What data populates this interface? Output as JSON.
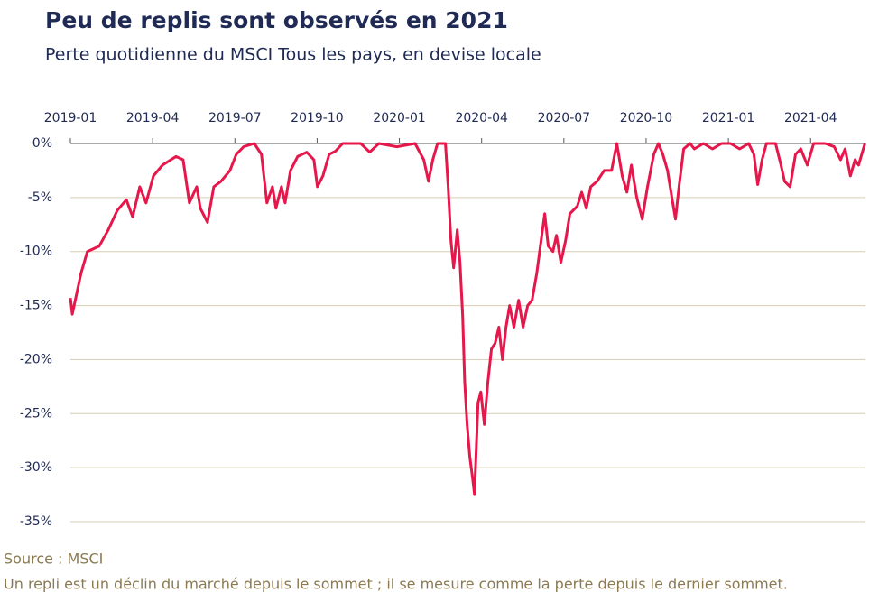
{
  "chart_data": {
    "type": "line",
    "title": "Peu de replis sont observés en 2021",
    "subtitle": "Perte quotidienne du MSCI Tous les pays, en devise locale",
    "source": "Source : MSCI",
    "note": "Un repli est un déclin du marché depuis le sommet ; il se mesure comme la perte depuis le dernier sommet.",
    "color": "#e5174b",
    "grid": true,
    "xlim": [
      0,
      29
    ],
    "xticks": [
      {
        "value": 0,
        "label": "2019-01"
      },
      {
        "value": 3,
        "label": "2019-04"
      },
      {
        "value": 6,
        "label": "2019-07"
      },
      {
        "value": 9,
        "label": "2019-10"
      },
      {
        "value": 12,
        "label": "2020-01"
      },
      {
        "value": 15,
        "label": "2020-04"
      },
      {
        "value": 18,
        "label": "2020-07"
      },
      {
        "value": 21,
        "label": "2020-10"
      },
      {
        "value": 24,
        "label": "2021-01"
      },
      {
        "value": 27,
        "label": "2021-04"
      }
    ],
    "ylim": [
      -35,
      0
    ],
    "yticks": [
      {
        "value": 0,
        "label": "0%"
      },
      {
        "value": -5,
        "label": "-5%"
      },
      {
        "value": -10,
        "label": "-10%"
      },
      {
        "value": -15,
        "label": "-15%"
      },
      {
        "value": -20,
        "label": "-20%"
      },
      {
        "value": -25,
        "label": "-25%"
      },
      {
        "value": -30,
        "label": "-30%"
      },
      {
        "value": -35,
        "label": "-35%"
      }
    ],
    "x": [
      0,
      0.07,
      0.39,
      0.62,
      1.05,
      1.38,
      1.71,
      2.04,
      2.27,
      2.53,
      2.76,
      3.03,
      3.36,
      3.85,
      4.11,
      4.34,
      4.61,
      4.74,
      5.0,
      5.23,
      5.49,
      5.82,
      6.05,
      6.32,
      6.71,
      6.97,
      7.17,
      7.37,
      7.5,
      7.7,
      7.83,
      8.03,
      8.29,
      8.62,
      8.88,
      9.01,
      9.21,
      9.44,
      9.67,
      9.93,
      10.59,
      10.92,
      11.25,
      11.91,
      12.57,
      12.89,
      13.06,
      13.22,
      13.39,
      13.68,
      13.78,
      13.88,
      13.98,
      14.11,
      14.21,
      14.31,
      14.38,
      14.47,
      14.57,
      14.67,
      14.74,
      14.87,
      14.97,
      15.1,
      15.23,
      15.36,
      15.49,
      15.63,
      15.76,
      15.89,
      16.02,
      16.18,
      16.35,
      16.51,
      16.68,
      16.84,
      17.01,
      17.17,
      17.3,
      17.43,
      17.6,
      17.73,
      17.89,
      18.06,
      18.22,
      18.49,
      18.65,
      18.82,
      18.98,
      19.21,
      19.47,
      19.74,
      19.93,
      20.13,
      20.3,
      20.46,
      20.66,
      20.86,
      21.05,
      21.28,
      21.45,
      21.61,
      21.78,
      21.94,
      22.07,
      22.2,
      22.37,
      22.6,
      22.76,
      23.09,
      23.42,
      23.75,
      24.08,
      24.41,
      24.74,
      24.93,
      25.07,
      25.23,
      25.39,
      25.72,
      25.92,
      26.05,
      26.25,
      26.45,
      26.64,
      26.88,
      27.11,
      27.53,
      27.86,
      28.09,
      28.26,
      28.45,
      28.62,
      28.75,
      28.98
    ],
    "values": [
      -14.3,
      -15.8,
      -12,
      -10,
      -9.5,
      -8,
      -6.2,
      -5.2,
      -6.8,
      -4,
      -5.5,
      -3,
      -2,
      -1.2,
      -1.5,
      -5.5,
      -4,
      -6,
      -7.3,
      -4,
      -3.5,
      -2.5,
      -1,
      -0.3,
      0,
      -1,
      -5.5,
      -4,
      -6,
      -4,
      -5.5,
      -2.5,
      -1.2,
      -0.8,
      -1.5,
      -4,
      -3,
      -1,
      -0.7,
      0,
      0,
      -0.8,
      0,
      -0.3,
      0,
      -1.5,
      -3.5,
      -1.5,
      0,
      0,
      -4,
      -9,
      -11.5,
      -8,
      -11,
      -16,
      -22,
      -26,
      -29,
      -31,
      -32.5,
      -24,
      -23,
      -26,
      -22,
      -19,
      -18.5,
      -17,
      -20,
      -17,
      -15,
      -17,
      -14.5,
      -17,
      -15,
      -14.5,
      -12,
      -9,
      -6.5,
      -9.5,
      -10,
      -8.5,
      -11,
      -9,
      -6.5,
      -5.8,
      -4.5,
      -6,
      -4,
      -3.5,
      -2.5,
      -2.5,
      0,
      -3,
      -4.5,
      -2,
      -5,
      -7,
      -4,
      -1,
      0,
      -1,
      -2.5,
      -5,
      -7,
      -4,
      -0.5,
      0,
      -0.5,
      0,
      -0.5,
      0,
      0,
      -0.5,
      0,
      -1,
      -3.8,
      -1.5,
      0,
      0,
      -2,
      -3.5,
      -4,
      -1,
      -0.5,
      -2,
      0,
      0,
      -0.3,
      -1.5,
      -0.5,
      -3,
      -1.5,
      -2,
      0
    ]
  }
}
